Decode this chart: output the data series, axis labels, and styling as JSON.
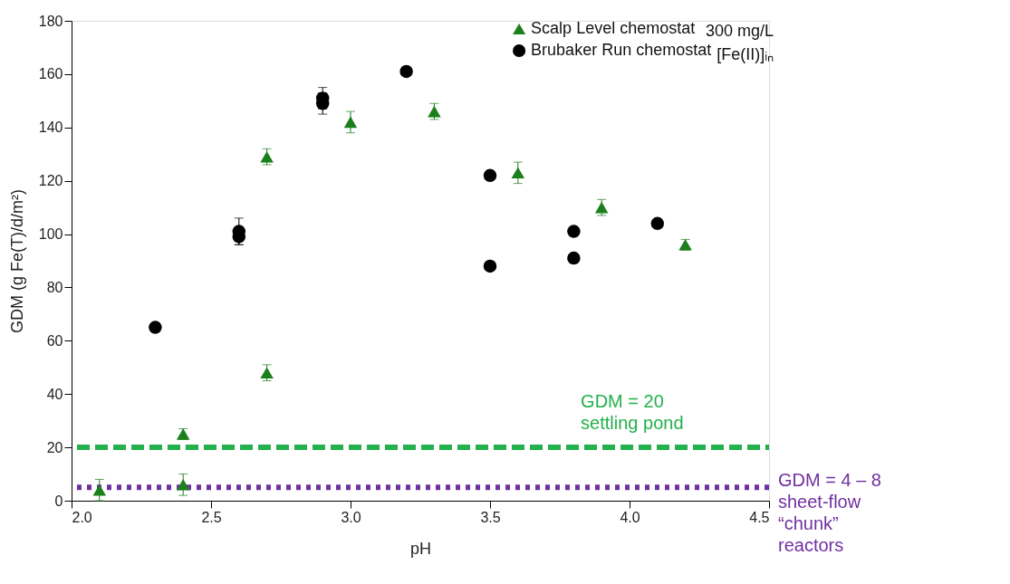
{
  "chart_data": {
    "type": "scatter",
    "xlabel": "pH",
    "ylabel": "GDM (g Fe(T)/d/m²)",
    "xlim": [
      2.0,
      4.5
    ],
    "xticks": [
      {
        "value": 2,
        "label": "2.0"
      },
      2.5,
      {
        "value": 3,
        "label": "3.0"
      },
      3.5,
      {
        "value": 4,
        "label": "4.0"
      },
      4.5
    ],
    "ylim": [
      0,
      180
    ],
    "yticks": [
      0,
      20,
      40,
      60,
      80,
      100,
      120,
      140,
      160,
      180
    ],
    "grid": false,
    "legend": "top right",
    "series": [
      {
        "name": "Scalp Level chemostat",
        "color": "#1b7f1b",
        "marker": "triangle",
        "x": [
          2.1,
          2.4,
          2.4,
          2.7,
          2.7,
          3.0,
          3.3,
          3.6,
          3.9,
          4.2
        ],
        "values": [
          4,
          25,
          6,
          129,
          48,
          142,
          146,
          123,
          110,
          96
        ],
        "errors": [
          4,
          2,
          4,
          3,
          3,
          4,
          3,
          4,
          3,
          2
        ]
      },
      {
        "name": "Brubaker Run chemostat",
        "color": "#000000",
        "marker": "circle",
        "x": [
          2.3,
          2.6,
          2.6,
          2.9,
          2.9,
          3.2,
          3.5,
          3.5,
          3.8,
          3.8,
          4.1
        ],
        "values": [
          65,
          101,
          99,
          151,
          149,
          161,
          122,
          88,
          101,
          91,
          104
        ],
        "errors": [
          null,
          5,
          3,
          4,
          4,
          null,
          null,
          null,
          null,
          null,
          null
        ]
      }
    ],
    "ref_lines": [
      {
        "axis": "y",
        "value": 20,
        "label": "GDM = 20\nsettling pond",
        "color": "#22b14c",
        "line_style": "dashed"
      },
      {
        "axis": "y",
        "value": 5,
        "color": "#7030a0",
        "line_style": "dotted"
      }
    ],
    "annotations": [
      "300 mg/L",
      "[Fe(II)]ᵢₙ",
      "GDM = 4 – 8\nsheet-flow\n“chunk”\nreactors"
    ]
  }
}
